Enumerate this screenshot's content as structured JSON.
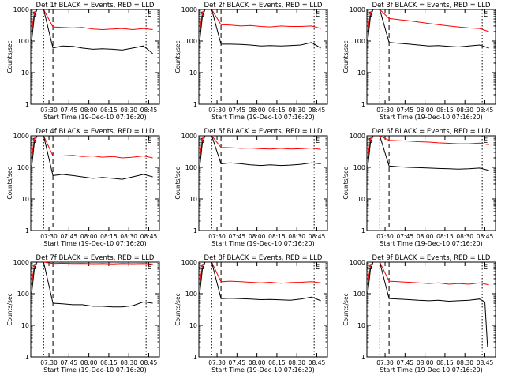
{
  "panel_template": {
    "title_suffix": " BLACK = Events, RED = LLD",
    "ylabel": "Counts/sec",
    "xlabel": "Start Time (19-Dec-10 07:16:20)",
    "xticks": [
      "07:30",
      "07:45",
      "08:00",
      "08:15",
      "08:30",
      "08:45"
    ],
    "yticks": [
      "1",
      "10",
      "100",
      "1000"
    ],
    "marker_s": "S",
    "marker_e": "E"
  },
  "colors": {
    "events": "#000000",
    "lld": "#ff0000",
    "axes": "#000000"
  },
  "chart_data": [
    {
      "type": "line",
      "title": "Det 1f BLACK = Events, RED = LLD",
      "xlabel": "Start Time (19-Dec-10 07:16:20)",
      "ylabel": "Counts/sec",
      "ylog": true,
      "ylim": [
        1,
        1000
      ],
      "xlim": [
        "07:16:20",
        "08:53"
      ],
      "xticks": [
        "07:30",
        "07:45",
        "08:00",
        "08:15",
        "08:30",
        "08:45"
      ],
      "yticks": [
        1,
        10,
        100,
        1000
      ],
      "markers": {
        "S": "07:16:20",
        "E": "08:45"
      },
      "series": [
        {
          "name": "Events",
          "color": "black",
          "x": [
            "07:17",
            "07:19",
            "07:21",
            "07:23",
            "07:26",
            "07:33",
            "07:40",
            "07:48",
            "07:55",
            "08:03",
            "08:10",
            "08:18",
            "08:25",
            "08:33",
            "08:41",
            "08:48"
          ],
          "y": [
            100,
            600,
            1000,
            1000,
            1000,
            60,
            70,
            68,
            60,
            55,
            57,
            55,
            52,
            60,
            70,
            40
          ]
        },
        {
          "name": "LLD",
          "color": "red",
          "x": [
            "07:17",
            "07:19",
            "07:21",
            "07:23",
            "07:26",
            "07:33",
            "07:40",
            "07:48",
            "07:55",
            "08:03",
            "08:10",
            "08:18",
            "08:25",
            "08:33",
            "08:41",
            "08:48"
          ],
          "y": [
            200,
            800,
            1000,
            1000,
            1000,
            280,
            270,
            260,
            270,
            240,
            230,
            240,
            250,
            230,
            250,
            230
          ]
        }
      ]
    },
    {
      "type": "line",
      "title": "Det 2f BLACK = Events, RED = LLD",
      "xlabel": "Start Time (19-Dec-10 07:16:20)",
      "ylabel": "Counts/sec",
      "ylog": true,
      "ylim": [
        1,
        1000
      ],
      "xlim": [
        "07:16:20",
        "08:53"
      ],
      "xticks": [
        "07:30",
        "07:45",
        "08:00",
        "08:15",
        "08:30",
        "08:45"
      ],
      "yticks": [
        1,
        10,
        100,
        1000
      ],
      "markers": {
        "S": "07:16:20",
        "E": "08:45"
      },
      "series": [
        {
          "name": "Events",
          "color": "black",
          "x": [
            "07:17",
            "07:19",
            "07:21",
            "07:23",
            "07:26",
            "07:33",
            "07:40",
            "07:48",
            "07:55",
            "08:03",
            "08:10",
            "08:18",
            "08:25",
            "08:33",
            "08:41",
            "08:48"
          ],
          "y": [
            100,
            600,
            1000,
            1000,
            1000,
            80,
            80,
            78,
            75,
            70,
            72,
            70,
            72,
            75,
            90,
            60
          ]
        },
        {
          "name": "LLD",
          "color": "red",
          "x": [
            "07:17",
            "07:19",
            "07:21",
            "07:23",
            "07:26",
            "07:33",
            "07:40",
            "07:48",
            "07:55",
            "08:03",
            "08:10",
            "08:18",
            "08:25",
            "08:33",
            "08:41",
            "08:48"
          ],
          "y": [
            200,
            800,
            1000,
            1000,
            1000,
            330,
            320,
            300,
            310,
            290,
            280,
            300,
            290,
            290,
            300,
            250
          ]
        }
      ]
    },
    {
      "type": "line",
      "title": "Det 3f BLACK = Events, RED = LLD",
      "xlabel": "Start Time (19-Dec-10 07:16:20)",
      "ylabel": "Counts/sec",
      "ylog": true,
      "ylim": [
        1,
        1000
      ],
      "xlim": [
        "07:16:20",
        "08:53"
      ],
      "xticks": [
        "07:30",
        "07:45",
        "08:00",
        "08:15",
        "08:30",
        "08:45"
      ],
      "yticks": [
        1,
        10,
        100,
        1000
      ],
      "markers": {
        "S": "07:16:20",
        "E": "08:45"
      },
      "series": [
        {
          "name": "Events",
          "color": "black",
          "x": [
            "07:17",
            "07:19",
            "07:21",
            "07:23",
            "07:26",
            "07:33",
            "07:40",
            "07:48",
            "07:55",
            "08:03",
            "08:10",
            "08:18",
            "08:25",
            "08:33",
            "08:41",
            "08:48"
          ],
          "y": [
            100,
            600,
            1000,
            1000,
            1000,
            90,
            85,
            80,
            75,
            70,
            72,
            68,
            65,
            70,
            75,
            60
          ]
        },
        {
          "name": "LLD",
          "color": "red",
          "x": [
            "07:17",
            "07:19",
            "07:21",
            "07:23",
            "07:26",
            "07:33",
            "07:40",
            "07:48",
            "07:55",
            "08:03",
            "08:10",
            "08:18",
            "08:25",
            "08:33",
            "08:41",
            "08:48"
          ],
          "y": [
            200,
            800,
            1000,
            1000,
            1000,
            520,
            480,
            440,
            400,
            360,
            330,
            300,
            280,
            260,
            250,
            200
          ]
        }
      ]
    },
    {
      "type": "line",
      "title": "Det 4f BLACK = Events, RED = LLD",
      "xlabel": "Start Time (19-Dec-10 07:16:20)",
      "ylabel": "Counts/sec",
      "ylog": true,
      "ylim": [
        1,
        1000
      ],
      "xlim": [
        "07:16:20",
        "08:53"
      ],
      "xticks": [
        "07:30",
        "07:45",
        "08:00",
        "08:15",
        "08:30",
        "08:45"
      ],
      "yticks": [
        1,
        10,
        100,
        1000
      ],
      "markers": {
        "S": "07:16:20",
        "E": "08:45"
      },
      "series": [
        {
          "name": "Events",
          "color": "black",
          "x": [
            "07:17",
            "07:19",
            "07:21",
            "07:23",
            "07:26",
            "07:33",
            "07:40",
            "07:48",
            "07:55",
            "08:03",
            "08:10",
            "08:18",
            "08:25",
            "08:33",
            "08:41",
            "08:48"
          ],
          "y": [
            100,
            600,
            1000,
            1000,
            1000,
            55,
            60,
            55,
            50,
            45,
            48,
            45,
            42,
            50,
            60,
            50
          ]
        },
        {
          "name": "LLD",
          "color": "red",
          "x": [
            "07:17",
            "07:19",
            "07:21",
            "07:23",
            "07:26",
            "07:33",
            "07:40",
            "07:48",
            "07:55",
            "08:03",
            "08:10",
            "08:18",
            "08:25",
            "08:33",
            "08:41",
            "08:48"
          ],
          "y": [
            200,
            800,
            1000,
            1000,
            1000,
            230,
            230,
            240,
            220,
            230,
            210,
            220,
            200,
            210,
            230,
            200
          ]
        }
      ]
    },
    {
      "type": "line",
      "title": "Det 5f BLACK = Events, RED = LLD",
      "xlabel": "Start Time (19-Dec-10 07:16:20)",
      "ylabel": "Counts/sec",
      "ylog": true,
      "ylim": [
        1,
        1000
      ],
      "xlim": [
        "07:16:20",
        "08:53"
      ],
      "xticks": [
        "07:30",
        "07:45",
        "08:00",
        "08:15",
        "08:30",
        "08:45"
      ],
      "yticks": [
        1,
        10,
        100,
        1000
      ],
      "markers": {
        "S": "07:16:20",
        "E": "08:45"
      },
      "series": [
        {
          "name": "Events",
          "color": "black",
          "x": [
            "07:17",
            "07:19",
            "07:21",
            "07:23",
            "07:26",
            "07:33",
            "07:40",
            "07:48",
            "07:55",
            "08:03",
            "08:10",
            "08:18",
            "08:25",
            "08:33",
            "08:41",
            "08:48"
          ],
          "y": [
            100,
            600,
            1000,
            1000,
            1000,
            130,
            140,
            130,
            120,
            115,
            120,
            115,
            118,
            125,
            140,
            130
          ]
        },
        {
          "name": "LLD",
          "color": "red",
          "x": [
            "07:17",
            "07:19",
            "07:21",
            "07:23",
            "07:26",
            "07:33",
            "07:40",
            "07:48",
            "07:55",
            "08:03",
            "08:10",
            "08:18",
            "08:25",
            "08:33",
            "08:41",
            "08:48"
          ],
          "y": [
            200,
            800,
            1000,
            1000,
            1000,
            430,
            420,
            400,
            410,
            390,
            380,
            400,
            380,
            390,
            410,
            370
          ]
        }
      ]
    },
    {
      "type": "line",
      "title": "Det 6f BLACK = Events, RED = LLD",
      "xlabel": "Start Time (19-Dec-10 07:16:20)",
      "ylabel": "Counts/sec",
      "ylog": true,
      "ylim": [
        1,
        1000
      ],
      "xlim": [
        "07:16:20",
        "08:53"
      ],
      "xticks": [
        "07:30",
        "07:45",
        "08:00",
        "08:15",
        "08:30",
        "08:45"
      ],
      "yticks": [
        1,
        10,
        100,
        1000
      ],
      "markers": {
        "S": "07:16:20",
        "E": "08:45"
      },
      "series": [
        {
          "name": "Events",
          "color": "black",
          "x": [
            "07:17",
            "07:19",
            "07:21",
            "07:23",
            "07:26",
            "07:33",
            "07:40",
            "07:48",
            "07:55",
            "08:03",
            "08:10",
            "08:18",
            "08:25",
            "08:33",
            "08:41",
            "08:48"
          ],
          "y": [
            100,
            600,
            1000,
            1000,
            1000,
            110,
            105,
            100,
            98,
            95,
            92,
            90,
            88,
            90,
            95,
            80
          ]
        },
        {
          "name": "LLD",
          "color": "red",
          "x": [
            "07:17",
            "07:19",
            "07:21",
            "07:23",
            "07:26",
            "07:33",
            "07:40",
            "07:48",
            "07:55",
            "08:03",
            "08:10",
            "08:18",
            "08:25",
            "08:33",
            "08:41",
            "08:48"
          ],
          "y": [
            200,
            800,
            1000,
            1000,
            1000,
            720,
            700,
            680,
            650,
            630,
            600,
            580,
            560,
            560,
            590,
            520
          ]
        }
      ]
    },
    {
      "type": "line",
      "title": "Det 7f BLACK = Events, RED = LLD",
      "xlabel": "Start Time (19-Dec-10 07:16:20)",
      "ylabel": "Counts/sec",
      "ylog": true,
      "ylim": [
        1,
        1000
      ],
      "xlim": [
        "07:16:20",
        "08:53"
      ],
      "xticks": [
        "07:30",
        "07:45",
        "08:00",
        "08:15",
        "08:30",
        "08:45"
      ],
      "yticks": [
        1,
        10,
        100,
        1000
      ],
      "markers": {
        "S": "07:16:20",
        "E": "08:45"
      },
      "series": [
        {
          "name": "Events",
          "color": "black",
          "x": [
            "07:17",
            "07:19",
            "07:21",
            "07:23",
            "07:26",
            "07:33",
            "07:40",
            "07:48",
            "07:55",
            "08:03",
            "08:10",
            "08:18",
            "08:25",
            "08:33",
            "08:41",
            "08:48"
          ],
          "y": [
            100,
            600,
            1000,
            1000,
            1000,
            50,
            48,
            45,
            45,
            40,
            40,
            38,
            38,
            42,
            55,
            50
          ]
        },
        {
          "name": "LLD",
          "color": "red",
          "x": [
            "07:17",
            "07:19",
            "07:21",
            "07:23",
            "07:26",
            "07:33",
            "07:40",
            "07:48",
            "07:55",
            "08:03",
            "08:10",
            "08:18",
            "08:25",
            "08:33",
            "08:41",
            "08:48"
          ],
          "y": [
            200,
            800,
            1000,
            1000,
            1000,
            900,
            920,
            900,
            910,
            890,
            900,
            880,
            900,
            890,
            900,
            870
          ]
        }
      ]
    },
    {
      "type": "line",
      "title": "Det 8f BLACK = Events, RED = LLD",
      "xlabel": "Start Time (19-Dec-10 07:16:20)",
      "ylabel": "Counts/sec",
      "ylog": true,
      "ylim": [
        1,
        1000
      ],
      "xlim": [
        "07:16:20",
        "08:53"
      ],
      "xticks": [
        "07:30",
        "07:45",
        "08:00",
        "08:15",
        "08:30",
        "08:45"
      ],
      "yticks": [
        1,
        10,
        100,
        1000
      ],
      "markers": {
        "S": "07:16:20",
        "E": "08:45"
      },
      "series": [
        {
          "name": "Events",
          "color": "black",
          "x": [
            "07:17",
            "07:19",
            "07:21",
            "07:23",
            "07:26",
            "07:33",
            "07:40",
            "07:48",
            "07:55",
            "08:03",
            "08:10",
            "08:18",
            "08:25",
            "08:33",
            "08:41",
            "08:48"
          ],
          "y": [
            100,
            600,
            1000,
            1000,
            1000,
            70,
            72,
            70,
            68,
            65,
            66,
            64,
            62,
            68,
            78,
            60
          ]
        },
        {
          "name": "LLD",
          "color": "red",
          "x": [
            "07:17",
            "07:19",
            "07:21",
            "07:23",
            "07:26",
            "07:33",
            "07:40",
            "07:48",
            "07:55",
            "08:03",
            "08:10",
            "08:18",
            "08:25",
            "08:33",
            "08:41",
            "08:48"
          ],
          "y": [
            200,
            800,
            1000,
            1000,
            1000,
            240,
            250,
            240,
            230,
            220,
            230,
            215,
            225,
            230,
            240,
            220
          ]
        }
      ]
    },
    {
      "type": "line",
      "title": "Det 9f BLACK = Events, RED = LLD",
      "xlabel": "Start Time (19-Dec-10 07:16:20)",
      "ylabel": "Counts/sec",
      "ylog": true,
      "ylim": [
        1,
        1000
      ],
      "xlim": [
        "07:16:20",
        "08:53"
      ],
      "xticks": [
        "07:30",
        "07:45",
        "08:00",
        "08:15",
        "08:30",
        "08:45"
      ],
      "yticks": [
        1,
        10,
        100,
        1000
      ],
      "markers": {
        "S": "07:16:20",
        "E": "08:45"
      },
      "series": [
        {
          "name": "Events",
          "color": "black",
          "x": [
            "07:17",
            "07:19",
            "07:21",
            "07:23",
            "07:26",
            "07:33",
            "07:40",
            "07:48",
            "07:55",
            "08:03",
            "08:10",
            "08:18",
            "08:25",
            "08:33",
            "08:41",
            "08:45",
            "08:47"
          ],
          "y": [
            100,
            600,
            1000,
            1000,
            1000,
            70,
            68,
            65,
            62,
            60,
            62,
            58,
            60,
            62,
            68,
            55,
            2
          ]
        },
        {
          "name": "LLD",
          "color": "red",
          "x": [
            "07:17",
            "07:19",
            "07:21",
            "07:23",
            "07:26",
            "07:33",
            "07:40",
            "07:48",
            "07:55",
            "08:03",
            "08:10",
            "08:18",
            "08:25",
            "08:33",
            "08:41",
            "08:48"
          ],
          "y": [
            200,
            800,
            1000,
            1000,
            1000,
            250,
            240,
            230,
            220,
            210,
            220,
            200,
            210,
            200,
            220,
            190
          ]
        }
      ]
    }
  ]
}
